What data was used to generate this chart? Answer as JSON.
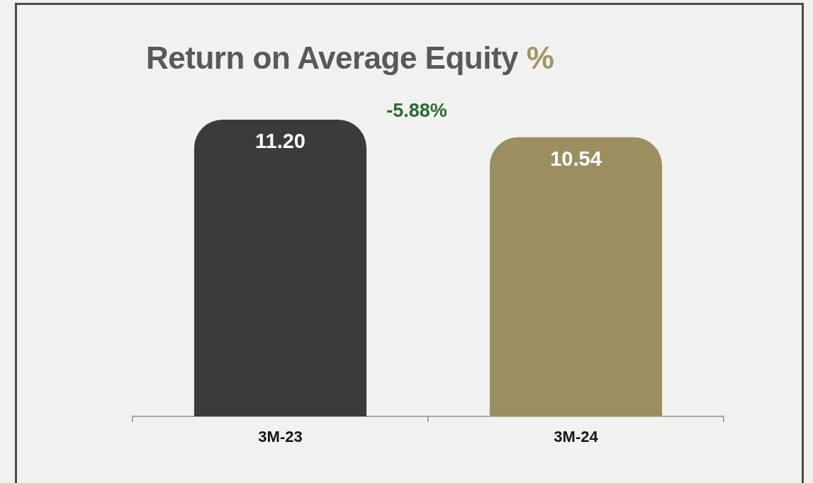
{
  "chart_data": {
    "type": "bar",
    "title": "Return on Average Equity %",
    "categories": [
      "3M-23",
      "3M-24"
    ],
    "values": [
      11.2,
      10.54
    ],
    "colors": [
      "#3b3b3b",
      "#9b8f62"
    ],
    "value_labels": [
      "11.20",
      "10.54"
    ],
    "tick_labels": "x",
    "annotations": [
      "-5.88%"
    ]
  }
}
